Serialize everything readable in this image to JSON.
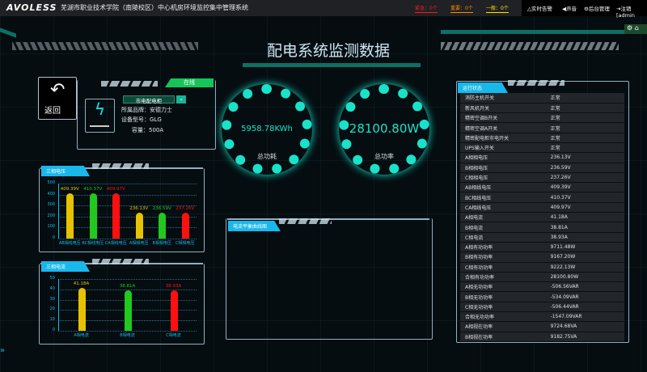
{
  "header": {
    "logo": "AVOLESS",
    "system_name": "芜湖市职业技术学院（南陵校区）中心机房环境监控集中管理系统",
    "alarms": [
      {
        "label": "紧急：0个",
        "color": "#ff1a1a"
      },
      {
        "label": "重要：0个",
        "color": "#ff8c00"
      },
      {
        "label": "一般：0个",
        "color": "#ffe600"
      }
    ],
    "links": [
      "△实时告警",
      "◀声音",
      "⚙后台管理",
      "⇥注销[admin"
    ]
  },
  "page_title": "配电系统监测数据",
  "device": {
    "back_label": "返回",
    "status": "在线",
    "cabinet_select": "市电配电柜",
    "brand": "所属品牌：安德力士",
    "model": "设备型号：GLG",
    "capacity": "容量：500A",
    "icon": "lightning-icon"
  },
  "gauges": [
    {
      "value": "5958.78KWh",
      "label": "总功耗"
    },
    {
      "value": "28100.80W",
      "label": "总功率"
    }
  ],
  "curve_panel": {
    "title": "电流平衡曲线图"
  },
  "status_panel": {
    "title": "运行状态",
    "rows": [
      [
        "消防主机开关",
        "正常"
      ],
      [
        "新风机开关",
        "正常"
      ],
      [
        "精密空调B开关",
        "正常"
      ],
      [
        "精密空调A开关",
        "正常"
      ],
      [
        "精密配电柜市电开关",
        "正常"
      ],
      [
        "UPS输入开关",
        "正常"
      ],
      [
        "A相相电压",
        "236.13V"
      ],
      [
        "B相相电压",
        "236.59V"
      ],
      [
        "C相相电压",
        "237.26V"
      ],
      [
        "AB相线电压",
        "409.39V"
      ],
      [
        "BC相线电压",
        "410.37V"
      ],
      [
        "CA相线电压",
        "409.97V"
      ],
      [
        "A相电流",
        "41.18A"
      ],
      [
        "B相电流",
        "38.81A"
      ],
      [
        "C相电流",
        "38.93A"
      ],
      [
        "A相有功功率",
        "9711.48W"
      ],
      [
        "B相有功功率",
        "9167.20W"
      ],
      [
        "C相有功功率",
        "9222.13W"
      ],
      [
        "合相有功功率",
        "28100.80W"
      ],
      [
        "A相无功功率",
        "-506.56VAR"
      ],
      [
        "B相无功功率",
        "-534.09VAR"
      ],
      [
        "C相无功功率",
        "-506.44VAR"
      ],
      [
        "合相无功功率",
        "-1547.09VAR"
      ],
      [
        "A相视在功率",
        "9724.68VA"
      ],
      [
        "B相视在功率",
        "9182.75VA"
      ]
    ]
  },
  "chart_data": [
    {
      "type": "bar",
      "title": "三相电压",
      "categories": [
        "AB相线电压",
        "BC相线电压",
        "CA相线电压",
        "A相相电压",
        "B相相电压",
        "C相相电压"
      ],
      "values": [
        409.39,
        410.37,
        409.97,
        236.13,
        236.59,
        237.26
      ],
      "labels": [
        "409.39V",
        "410.37V",
        "409.97V",
        "236.13V",
        "236.59V",
        "237.26V"
      ],
      "colors": [
        "#e6c200",
        "#22c81e",
        "#ff1010",
        "#e6c200",
        "#22c81e",
        "#ff1010"
      ],
      "ylim": [
        0,
        500
      ],
      "yticks": [
        0,
        100,
        200,
        300,
        400,
        500
      ],
      "grid": true
    },
    {
      "type": "bar",
      "title": "三相电流",
      "categories": [
        "A相电流",
        "B相电流",
        "C相电流"
      ],
      "values": [
        41.18,
        38.81,
        38.93
      ],
      "labels": [
        "41.18A",
        "38.81A",
        "38.93A"
      ],
      "colors": [
        "#e6c200",
        "#22c81e",
        "#ff1010"
      ],
      "ylim": [
        0,
        50
      ],
      "yticks": [
        0,
        10,
        20,
        30,
        40,
        50
      ],
      "grid": true
    }
  ]
}
